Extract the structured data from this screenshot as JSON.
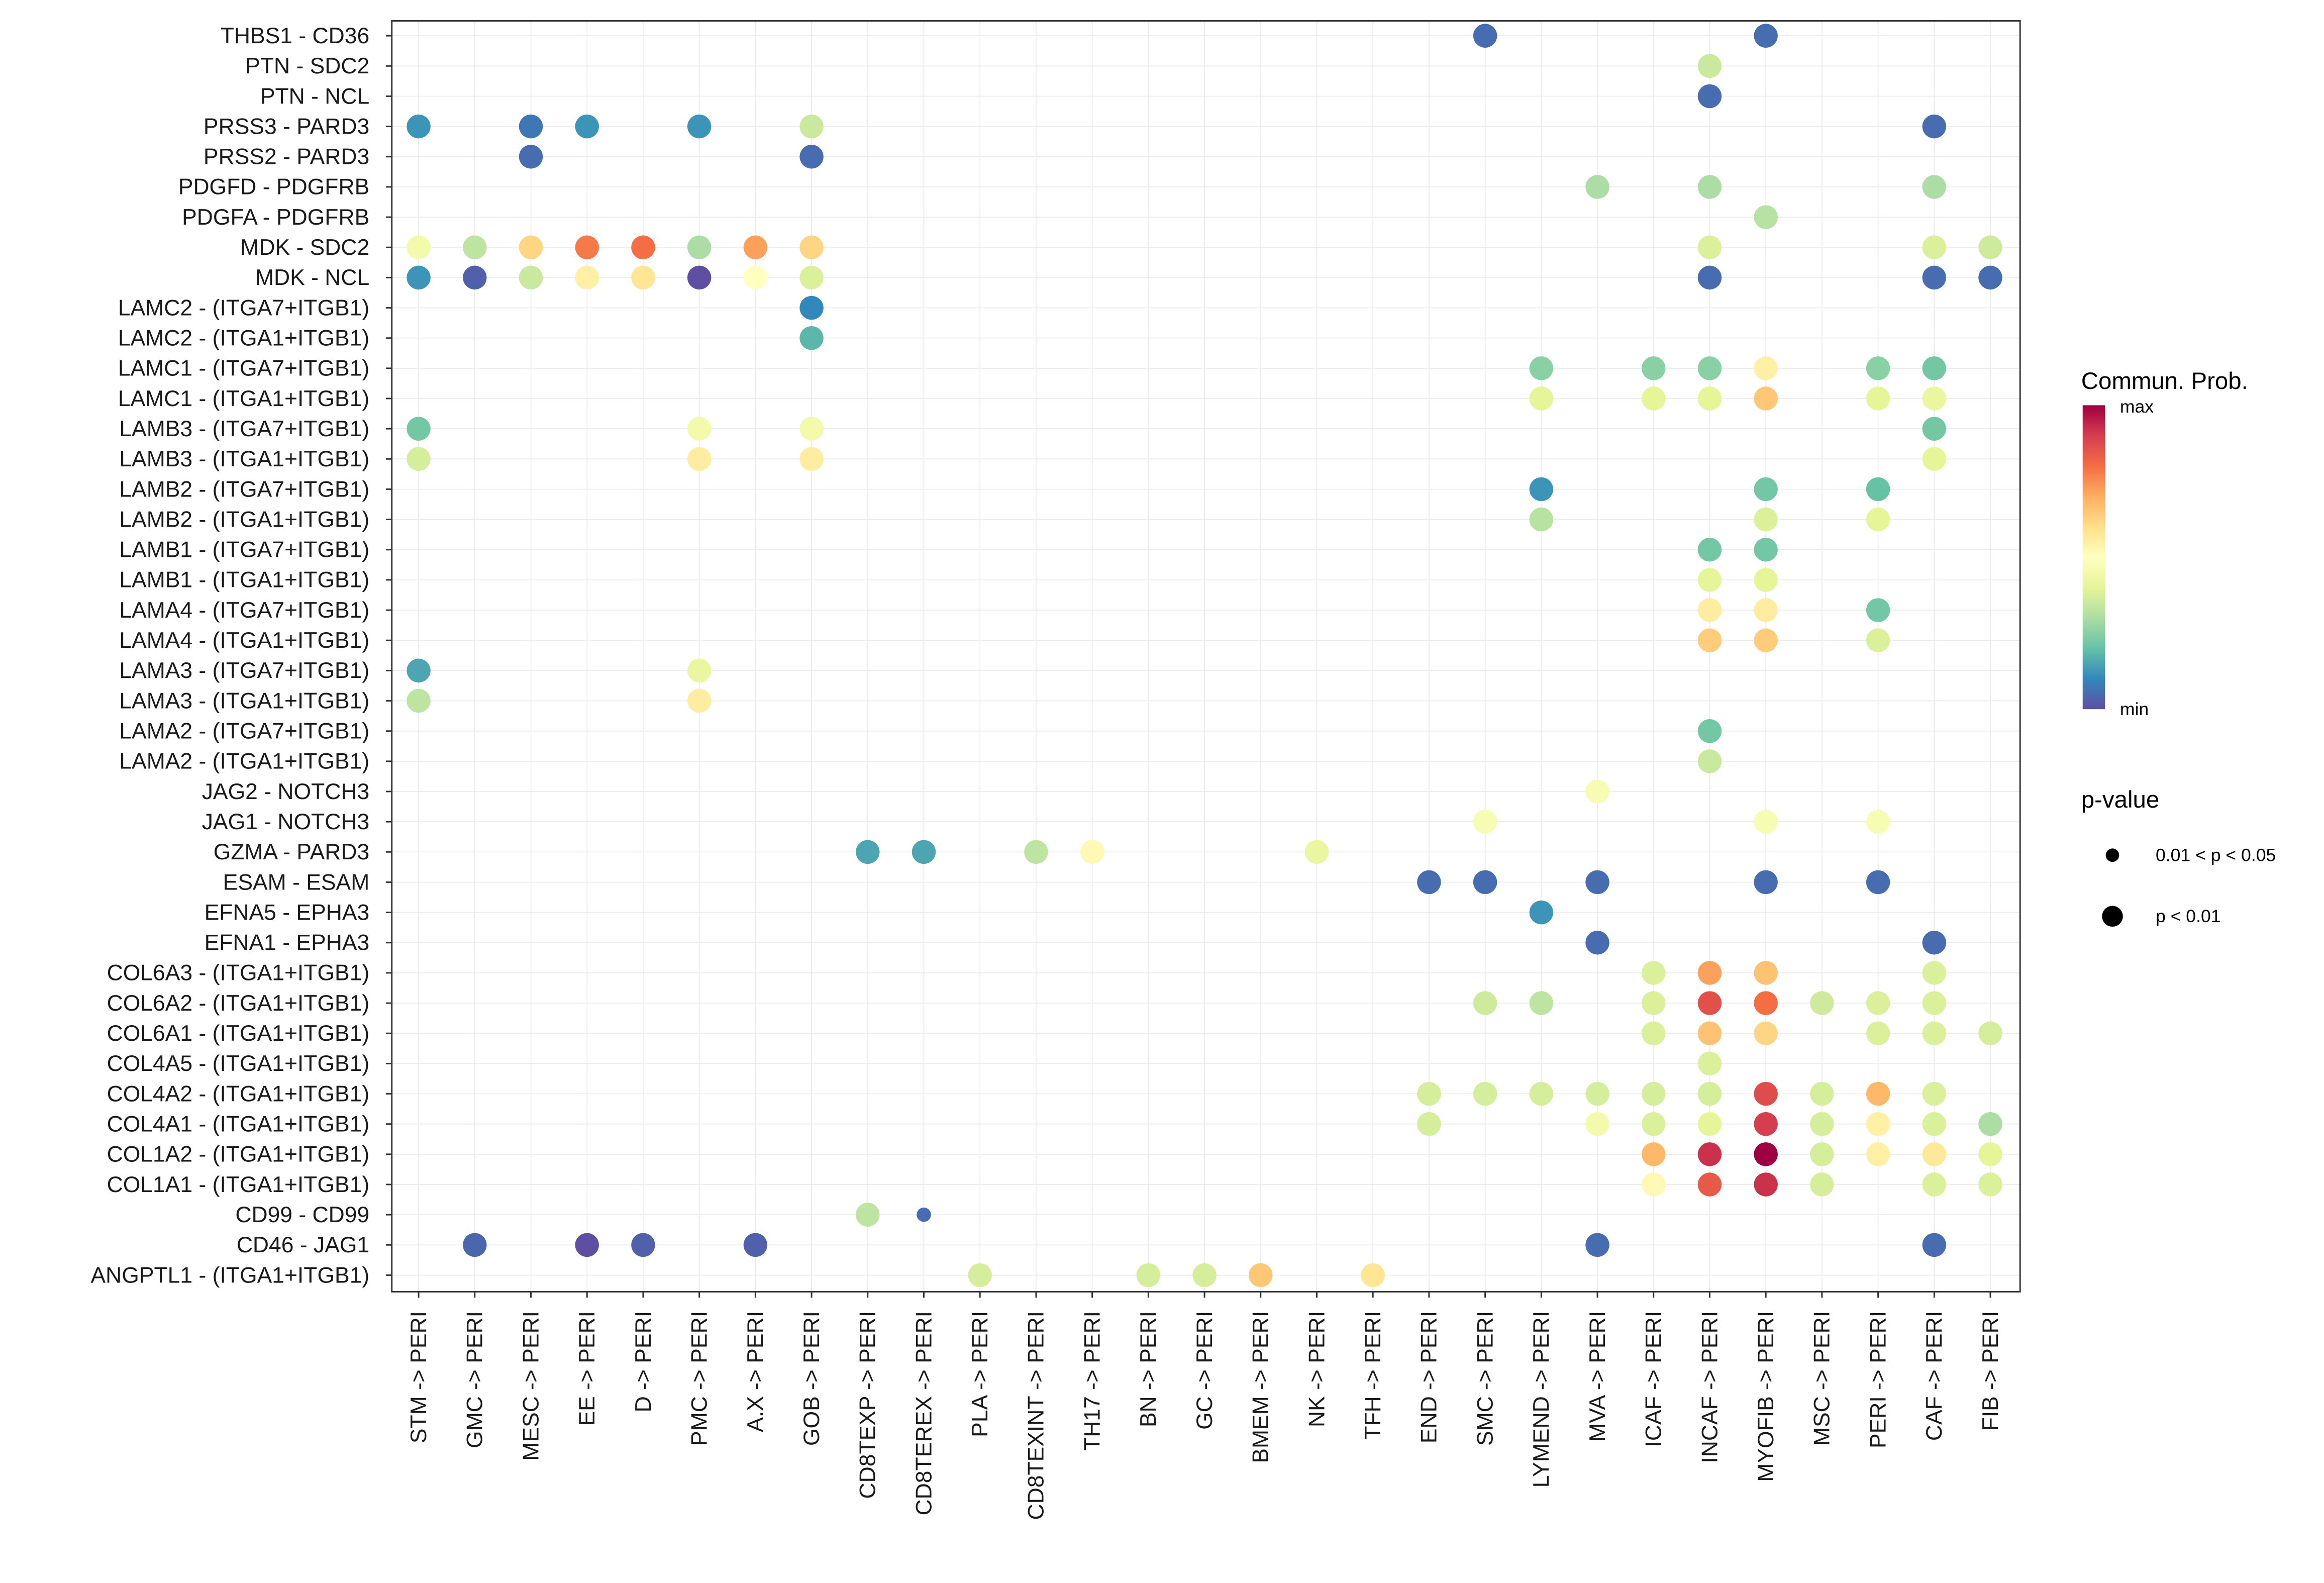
{
  "chart_data": {
    "type": "scatter",
    "subtype": "dot-plot",
    "title": "",
    "xlabel": "",
    "ylabel": "",
    "grid": true,
    "legend_position": "right",
    "x_categories": [
      "STM -> PERI",
      "GMC -> PERI",
      "MESC -> PERI",
      "EE -> PERI",
      "D -> PERI",
      "PMC -> PERI",
      "A.X -> PERI",
      "GOB -> PERI",
      "CD8TEXP -> PERI",
      "CD8TEREX -> PERI",
      "PLA -> PERI",
      "CD8TEXINT -> PERI",
      "TH17 -> PERI",
      "BN -> PERI",
      "GC -> PERI",
      "BMEM -> PERI",
      "NK -> PERI",
      "TFH -> PERI",
      "END -> PERI",
      "SMC -> PERI",
      "LYMEND -> PERI",
      "MVA -> PERI",
      "ICAF -> PERI",
      "INCAF -> PERI",
      "MYOFIB -> PERI",
      "MSC -> PERI",
      "PERI -> PERI",
      "CAF -> PERI",
      "FIB -> PERI"
    ],
    "y_categories": [
      "THBS1 - CD36",
      "PTN - SDC2",
      "PTN - NCL",
      "PRSS3 - PARD3",
      "PRSS2 - PARD3",
      "PDGFD - PDGFRB",
      "PDGFA - PDGFRB",
      "MDK - SDC2",
      "MDK - NCL",
      "LAMC2 - (ITGA7+ITGB1)",
      "LAMC2 - (ITGA1+ITGB1)",
      "LAMC1 - (ITGA7+ITGB1)",
      "LAMC1 - (ITGA1+ITGB1)",
      "LAMB3 - (ITGA7+ITGB1)",
      "LAMB3 - (ITGA1+ITGB1)",
      "LAMB2 - (ITGA7+ITGB1)",
      "LAMB2 - (ITGA1+ITGB1)",
      "LAMB1 - (ITGA7+ITGB1)",
      "LAMB1 - (ITGA1+ITGB1)",
      "LAMA4 - (ITGA7+ITGB1)",
      "LAMA4 - (ITGA1+ITGB1)",
      "LAMA3 - (ITGA7+ITGB1)",
      "LAMA3 - (ITGA1+ITGB1)",
      "LAMA2 - (ITGA7+ITGB1)",
      "LAMA2 - (ITGA1+ITGB1)",
      "JAG2 - NOTCH3",
      "JAG1 - NOTCH3",
      "GZMA - PARD3",
      "ESAM - ESAM",
      "EFNA5 - EPHA3",
      "EFNA1 - EPHA3",
      "COL6A3 - (ITGA1+ITGB1)",
      "COL6A2 - (ITGA1+ITGB1)",
      "COL6A1 - (ITGA1+ITGB1)",
      "COL4A5 - (ITGA1+ITGB1)",
      "COL4A2 - (ITGA1+ITGB1)",
      "COL4A1 - (ITGA1+ITGB1)",
      "COL1A2 - (ITGA1+ITGB1)",
      "COL1A1 - (ITGA1+ITGB1)",
      "CD99 - CD99",
      "CD46 - JAG1",
      "ANGPTL1 - (ITGA1+ITGB1)"
    ],
    "points_format": "[y_index, x_index, scaled_prob_0_to_1, pvalue_class (1 = p<0.01, 2 = 0.01<p<0.05)]",
    "points": [
      [
        0,
        19,
        0.05,
        1
      ],
      [
        0,
        24,
        0.05,
        1
      ],
      [
        1,
        23,
        0.35,
        1
      ],
      [
        2,
        23,
        0.05,
        1
      ],
      [
        3,
        0,
        0.12,
        1
      ],
      [
        3,
        2,
        0.07,
        1
      ],
      [
        3,
        3,
        0.12,
        1
      ],
      [
        3,
        5,
        0.12,
        1
      ],
      [
        3,
        7,
        0.35,
        1
      ],
      [
        3,
        27,
        0.05,
        1
      ],
      [
        4,
        2,
        0.05,
        1
      ],
      [
        4,
        7,
        0.05,
        1
      ],
      [
        5,
        21,
        0.3,
        1
      ],
      [
        5,
        23,
        0.3,
        1
      ],
      [
        5,
        27,
        0.3,
        1
      ],
      [
        6,
        24,
        0.32,
        1
      ],
      [
        7,
        0,
        0.45,
        1
      ],
      [
        7,
        1,
        0.33,
        1
      ],
      [
        7,
        2,
        0.62,
        1
      ],
      [
        7,
        3,
        0.78,
        1
      ],
      [
        7,
        4,
        0.8,
        1
      ],
      [
        7,
        5,
        0.3,
        1
      ],
      [
        7,
        6,
        0.72,
        1
      ],
      [
        7,
        7,
        0.62,
        1
      ],
      [
        7,
        23,
        0.38,
        1
      ],
      [
        7,
        27,
        0.38,
        1
      ],
      [
        7,
        28,
        0.36,
        1
      ],
      [
        8,
        0,
        0.12,
        1
      ],
      [
        8,
        1,
        0.03,
        1
      ],
      [
        8,
        2,
        0.35,
        1
      ],
      [
        8,
        3,
        0.55,
        1
      ],
      [
        8,
        4,
        0.58,
        1
      ],
      [
        8,
        5,
        0.0,
        1
      ],
      [
        8,
        6,
        0.5,
        1
      ],
      [
        8,
        7,
        0.38,
        1
      ],
      [
        8,
        23,
        0.05,
        1
      ],
      [
        8,
        27,
        0.05,
        1
      ],
      [
        8,
        28,
        0.05,
        1
      ],
      [
        9,
        7,
        0.1,
        1
      ],
      [
        10,
        7,
        0.18,
        1
      ],
      [
        11,
        20,
        0.25,
        1
      ],
      [
        11,
        22,
        0.25,
        1
      ],
      [
        11,
        23,
        0.25,
        1
      ],
      [
        11,
        24,
        0.55,
        1
      ],
      [
        11,
        26,
        0.25,
        1
      ],
      [
        11,
        27,
        0.22,
        1
      ],
      [
        12,
        20,
        0.4,
        1
      ],
      [
        12,
        22,
        0.4,
        1
      ],
      [
        12,
        23,
        0.4,
        1
      ],
      [
        12,
        24,
        0.65,
        1
      ],
      [
        12,
        26,
        0.4,
        1
      ],
      [
        12,
        27,
        0.42,
        1
      ],
      [
        13,
        0,
        0.22,
        1
      ],
      [
        13,
        5,
        0.45,
        1
      ],
      [
        13,
        7,
        0.45,
        1
      ],
      [
        13,
        27,
        0.22,
        1
      ],
      [
        14,
        0,
        0.37,
        1
      ],
      [
        14,
        5,
        0.56,
        1
      ],
      [
        14,
        7,
        0.56,
        1
      ],
      [
        14,
        27,
        0.4,
        1
      ],
      [
        15,
        20,
        0.12,
        1
      ],
      [
        15,
        24,
        0.22,
        1
      ],
      [
        15,
        26,
        0.2,
        1
      ],
      [
        16,
        20,
        0.32,
        1
      ],
      [
        16,
        24,
        0.38,
        1
      ],
      [
        16,
        26,
        0.4,
        1
      ],
      [
        17,
        23,
        0.22,
        1
      ],
      [
        17,
        24,
        0.22,
        1
      ],
      [
        18,
        23,
        0.4,
        1
      ],
      [
        18,
        24,
        0.4,
        1
      ],
      [
        19,
        23,
        0.56,
        1
      ],
      [
        19,
        24,
        0.56,
        1
      ],
      [
        19,
        26,
        0.22,
        1
      ],
      [
        20,
        23,
        0.64,
        1
      ],
      [
        20,
        24,
        0.64,
        1
      ],
      [
        20,
        26,
        0.38,
        1
      ],
      [
        21,
        0,
        0.15,
        1
      ],
      [
        21,
        5,
        0.42,
        1
      ],
      [
        22,
        0,
        0.33,
        1
      ],
      [
        22,
        5,
        0.56,
        1
      ],
      [
        23,
        23,
        0.22,
        1
      ],
      [
        24,
        23,
        0.35,
        1
      ],
      [
        25,
        21,
        0.47,
        1
      ],
      [
        26,
        19,
        0.47,
        1
      ],
      [
        26,
        24,
        0.47,
        1
      ],
      [
        26,
        26,
        0.47,
        1
      ],
      [
        27,
        8,
        0.15,
        1
      ],
      [
        27,
        9,
        0.15,
        1
      ],
      [
        27,
        11,
        0.33,
        1
      ],
      [
        27,
        12,
        0.52,
        1
      ],
      [
        27,
        16,
        0.42,
        1
      ],
      [
        28,
        18,
        0.05,
        1
      ],
      [
        28,
        19,
        0.05,
        1
      ],
      [
        28,
        21,
        0.05,
        1
      ],
      [
        28,
        24,
        0.05,
        1
      ],
      [
        28,
        26,
        0.05,
        1
      ],
      [
        29,
        20,
        0.12,
        1
      ],
      [
        30,
        21,
        0.05,
        1
      ],
      [
        30,
        27,
        0.05,
        1
      ],
      [
        31,
        22,
        0.38,
        1
      ],
      [
        31,
        23,
        0.72,
        1
      ],
      [
        31,
        24,
        0.66,
        1
      ],
      [
        31,
        27,
        0.38,
        1
      ],
      [
        32,
        19,
        0.36,
        1
      ],
      [
        32,
        20,
        0.33,
        1
      ],
      [
        32,
        22,
        0.38,
        1
      ],
      [
        32,
        23,
        0.86,
        1
      ],
      [
        32,
        24,
        0.8,
        1
      ],
      [
        32,
        25,
        0.36,
        1
      ],
      [
        32,
        26,
        0.38,
        1
      ],
      [
        32,
        27,
        0.38,
        1
      ],
      [
        33,
        22,
        0.38,
        1
      ],
      [
        33,
        23,
        0.66,
        1
      ],
      [
        33,
        24,
        0.62,
        1
      ],
      [
        33,
        26,
        0.38,
        1
      ],
      [
        33,
        27,
        0.38,
        1
      ],
      [
        33,
        28,
        0.37,
        1
      ],
      [
        34,
        23,
        0.38,
        1
      ],
      [
        35,
        18,
        0.37,
        1
      ],
      [
        35,
        19,
        0.37,
        1
      ],
      [
        35,
        20,
        0.37,
        1
      ],
      [
        35,
        21,
        0.37,
        1
      ],
      [
        35,
        22,
        0.37,
        1
      ],
      [
        35,
        23,
        0.37,
        1
      ],
      [
        35,
        24,
        0.87,
        1
      ],
      [
        35,
        25,
        0.37,
        1
      ],
      [
        35,
        26,
        0.68,
        1
      ],
      [
        35,
        27,
        0.38,
        1
      ],
      [
        36,
        18,
        0.37,
        1
      ],
      [
        36,
        21,
        0.45,
        1
      ],
      [
        36,
        22,
        0.38,
        1
      ],
      [
        36,
        23,
        0.4,
        1
      ],
      [
        36,
        24,
        0.9,
        1
      ],
      [
        36,
        25,
        0.37,
        1
      ],
      [
        36,
        26,
        0.55,
        1
      ],
      [
        36,
        27,
        0.38,
        1
      ],
      [
        36,
        28,
        0.3,
        1
      ],
      [
        37,
        22,
        0.68,
        1
      ],
      [
        37,
        23,
        0.92,
        1
      ],
      [
        37,
        24,
        1.0,
        1
      ],
      [
        37,
        25,
        0.37,
        1
      ],
      [
        37,
        26,
        0.55,
        1
      ],
      [
        37,
        27,
        0.57,
        1
      ],
      [
        37,
        28,
        0.4,
        1
      ],
      [
        38,
        22,
        0.52,
        1
      ],
      [
        38,
        23,
        0.84,
        1
      ],
      [
        38,
        24,
        0.92,
        1
      ],
      [
        38,
        25,
        0.37,
        1
      ],
      [
        38,
        27,
        0.38,
        1
      ],
      [
        38,
        28,
        0.38,
        1
      ],
      [
        39,
        8,
        0.33,
        1
      ],
      [
        39,
        9,
        0.05,
        2
      ],
      [
        40,
        1,
        0.04,
        1
      ],
      [
        40,
        3,
        0.0,
        1
      ],
      [
        40,
        4,
        0.03,
        1
      ],
      [
        40,
        6,
        0.03,
        1
      ],
      [
        40,
        21,
        0.05,
        1
      ],
      [
        40,
        27,
        0.05,
        1
      ],
      [
        41,
        10,
        0.37,
        1
      ],
      [
        41,
        13,
        0.37,
        1
      ],
      [
        41,
        14,
        0.37,
        1
      ],
      [
        41,
        15,
        0.65,
        1
      ],
      [
        41,
        17,
        0.58,
        1
      ]
    ],
    "color_legend": {
      "title": "Commun. Prob.",
      "max_label": "max",
      "min_label": "min",
      "palette": [
        "#5E4FA2",
        "#3288BD",
        "#66C2A5",
        "#ABDDA4",
        "#E6F598",
        "#FFFFBF",
        "#FEE08B",
        "#FDAE61",
        "#F46D43",
        "#D53E4F",
        "#9E0142"
      ]
    },
    "size_legend": {
      "title": "p-value",
      "entries": [
        "0.01 < p < 0.05",
        "p < 0.01"
      ]
    }
  }
}
